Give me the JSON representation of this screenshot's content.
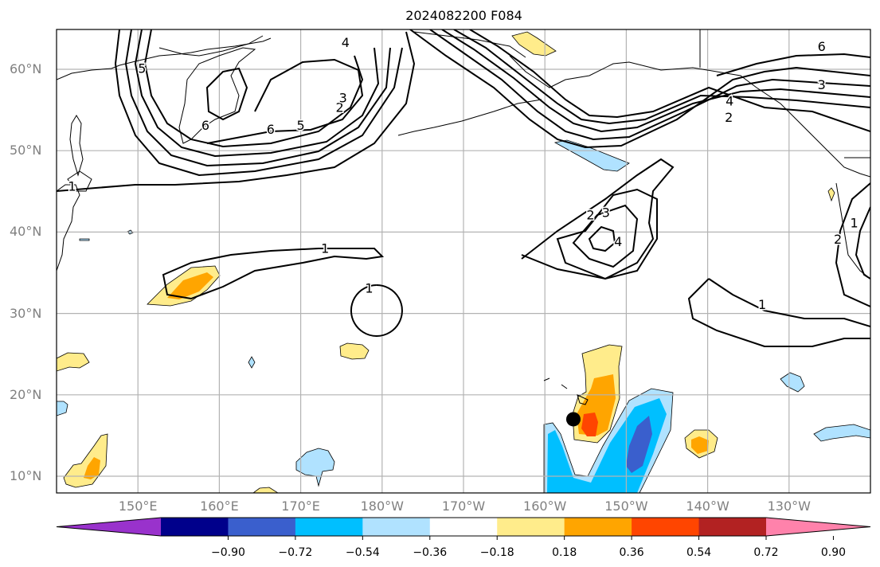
{
  "title": "2024082200 F084",
  "map": {
    "projection": "PlateCarree",
    "lon_range": [
      140,
      240
    ],
    "lat_range": [
      8,
      65
    ],
    "gridlines": true,
    "lat_ticks": [
      {
        "value": 60,
        "label": "60°N"
      },
      {
        "value": 50,
        "label": "50°N"
      },
      {
        "value": 40,
        "label": "40°N"
      },
      {
        "value": 30,
        "label": "30°N"
      },
      {
        "value": 20,
        "label": "20°N"
      },
      {
        "value": 10,
        "label": "10°N"
      }
    ],
    "lon_ticks": [
      {
        "value": 150,
        "label": "150°E"
      },
      {
        "value": 160,
        "label": "160°E"
      },
      {
        "value": 170,
        "label": "170°E"
      },
      {
        "value": 180,
        "label": "180°W"
      },
      {
        "value": 190,
        "label": "170°W"
      },
      {
        "value": 200,
        "label": "160°W"
      },
      {
        "value": 210,
        "label": "150°W"
      },
      {
        "value": 220,
        "label": "140°W"
      },
      {
        "value": 230,
        "label": "130°W"
      }
    ],
    "storm_marker": {
      "lon": 203.5,
      "lat": 17,
      "label": "storm-center"
    },
    "contour_labels": [
      {
        "text": "1",
        "lon": 141.9,
        "lat": 45.5
      },
      {
        "text": "1",
        "lon": 173,
        "lat": 37.9
      },
      {
        "text": "1",
        "lon": 178.4,
        "lat": 33
      },
      {
        "text": "1",
        "lon": 226.7,
        "lat": 31
      },
      {
        "text": "1",
        "lon": 238,
        "lat": 41
      },
      {
        "text": "2",
        "lon": 236,
        "lat": 39
      },
      {
        "text": "2",
        "lon": 205.6,
        "lat": 42
      },
      {
        "text": "3",
        "lon": 207.5,
        "lat": 42.3
      },
      {
        "text": "4",
        "lon": 209,
        "lat": 38.7
      },
      {
        "text": "2",
        "lon": 222.6,
        "lat": 54
      },
      {
        "text": "4",
        "lon": 222.7,
        "lat": 56
      },
      {
        "text": "3",
        "lon": 234,
        "lat": 58
      },
      {
        "text": "6",
        "lon": 234,
        "lat": 62.7
      },
      {
        "text": "5",
        "lon": 150.5,
        "lat": 60
      },
      {
        "text": "6",
        "lon": 158.3,
        "lat": 53
      },
      {
        "text": "6",
        "lon": 166.3,
        "lat": 52.5
      },
      {
        "text": "5",
        "lon": 170,
        "lat": 53
      },
      {
        "text": "2",
        "lon": 174.8,
        "lat": 55.2
      },
      {
        "text": "3",
        "lon": 175.2,
        "lat": 56.4
      },
      {
        "text": "4",
        "lon": 175.5,
        "lat": 63.2
      }
    ]
  },
  "colorbar": {
    "extend": "both",
    "colors": [
      "#9932cc",
      "#00008b",
      "#3a5fcd",
      "#00bfff",
      "#b0e2ff",
      "#ffffff",
      "#ffec8b",
      "#ffa500",
      "#ff4500",
      "#b22222",
      "#ff82ab"
    ],
    "ticks": [
      "−0.90",
      "−0.72",
      "−0.54",
      "−0.36",
      "−0.18",
      "0.18",
      "0.36",
      "0.54",
      "0.72",
      "0.90"
    ]
  }
}
